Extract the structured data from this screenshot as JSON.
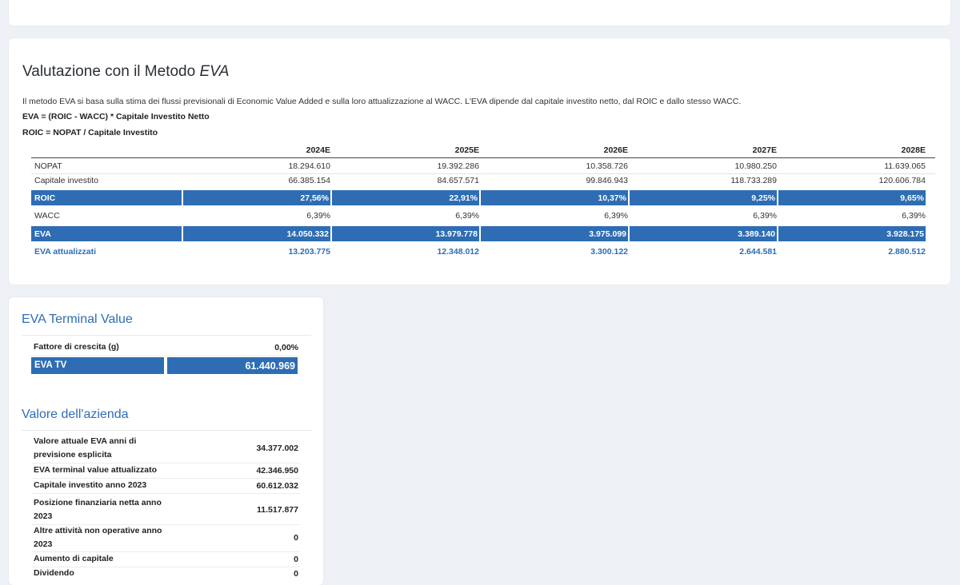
{
  "eva": {
    "title_prefix": "Valutazione con il Metodo ",
    "title_italic": "EVA",
    "description": "Il metodo EVA si basa sulla stima dei flussi previsionali di Economic Value Added e sulla loro attualizzazione al WACC. L'EVA dipende dal capitale investito netto, dal ROIC e dallo stesso WACC.",
    "formula1": "EVA = (ROIC - WACC) * Capitale Investito Netto",
    "formula2": "ROIC = NOPAT / Capitale Investito",
    "years": [
      "2024E",
      "2025E",
      "2026E",
      "2027E",
      "2028E"
    ],
    "rows": {
      "nopat": {
        "label": "NOPAT",
        "values": [
          "18.294.610",
          "19.392.286",
          "10.358.726",
          "10.980.250",
          "11.639.065"
        ]
      },
      "capitale": {
        "label": "Capitale investito",
        "values": [
          "66.385.154",
          "84.657.571",
          "99.846.943",
          "118.733.289",
          "120.606.784"
        ]
      },
      "roic": {
        "label": "ROIC",
        "values": [
          "27,56%",
          "22,91%",
          "10,37%",
          "9,25%",
          "9,65%"
        ]
      },
      "wacc": {
        "label": "WACC",
        "values": [
          "6,39%",
          "6,39%",
          "6,39%",
          "6,39%",
          "6,39%"
        ]
      },
      "eva": {
        "label": "EVA",
        "values": [
          "14.050.332",
          "13.979.778",
          "3.975.099",
          "3.389.140",
          "3.928.175"
        ]
      },
      "eva_att": {
        "label": "EVA attualizzati",
        "values": [
          "13.203.775",
          "12.348.012",
          "3.300.122",
          "2.644.581",
          "2.880.512"
        ]
      }
    },
    "colors": {
      "accent": "#2e6db3"
    }
  },
  "tv": {
    "title": "EVA Terminal Value",
    "growth_label": "Fattore di crescita (g)",
    "growth_value": "0,00%",
    "evatv_label": "EVA TV",
    "evatv_value": "61.440.969"
  },
  "valore": {
    "title": "Valore dell'azienda",
    "rows": [
      {
        "label": "Valore attuale EVA anni di previsione esplicita",
        "value": "34.377.002"
      },
      {
        "label": "EVA terminal value attualizzato",
        "value": "42.346.950"
      },
      {
        "label": "Capitale investito anno 2023",
        "value": "60.612.032"
      },
      {
        "label": "Posizione finanziaria netta anno 2023",
        "value": "11.517.877"
      },
      {
        "label": "Altre attività non operative anno 2023",
        "value": "0"
      },
      {
        "label": "Aumento di capitale",
        "value": "0"
      },
      {
        "label": "Dividendo",
        "value": "0"
      }
    ]
  }
}
